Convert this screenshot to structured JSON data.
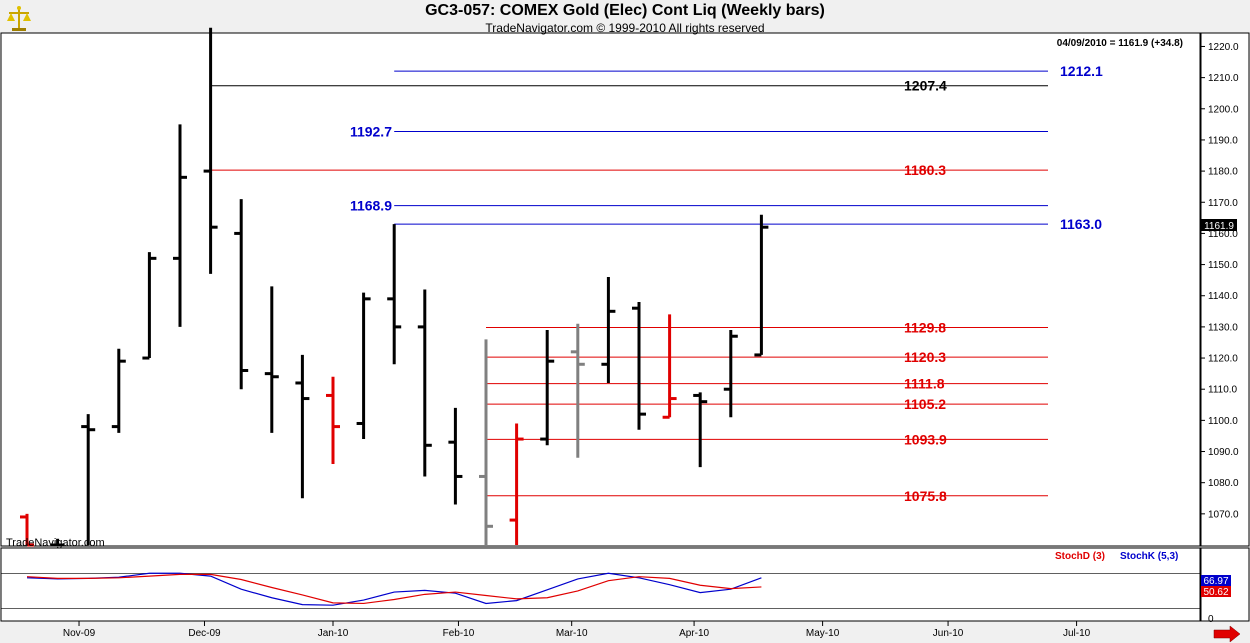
{
  "header": {
    "title": "GC3-057:  COMEX Gold (Elec) Cont Liq  (Weekly bars)",
    "subtitle": "TradeNavigator.com © 1999-2010 All rights reserved",
    "last_info": "04/09/2010 = 1161.9 (+34.8)",
    "watermark": "TradeNavigator.com",
    "last_price_tag": "1161.9"
  },
  "colors": {
    "black": "#000000",
    "red": "#e00000",
    "gray": "#808080",
    "blue": "#0000cc",
    "line_red": "#e00000"
  },
  "chart_data": [
    {
      "type": "ohlc",
      "title": "GC3-057:  COMEX Gold (Elec) Cont Liq  (Weekly bars)",
      "ylim": [
        1060,
        1224
      ],
      "yticks": [
        1070.0,
        1080.0,
        1090.0,
        1100.0,
        1110.0,
        1120.0,
        1130.0,
        1140.0,
        1150.0,
        1160.0,
        1170.0,
        1180.0,
        1190.0,
        1200.0,
        1210.0,
        1220.0
      ],
      "xticks": [
        {
          "label": "Nov-09",
          "bar": 1.7
        },
        {
          "label": "Dec-09",
          "bar": 5.8
        },
        {
          "label": "Jan-10",
          "bar": 10.0
        },
        {
          "label": "Feb-10",
          "bar": 14.1
        },
        {
          "label": "Mar-10",
          "bar": 17.8
        },
        {
          "label": "Apr-10",
          "bar": 21.8
        },
        {
          "label": "May-10",
          "bar": 26.0
        },
        {
          "label": "Jun-10",
          "bar": 30.1
        },
        {
          "label": "Jul-10",
          "bar": 34.3
        }
      ],
      "bars": [
        {
          "o": 1069,
          "h": 1070,
          "l": 1060,
          "c": 1060,
          "color": "red"
        },
        {
          "o": 1060,
          "h": 1062,
          "l": 1060,
          "c": 1060,
          "color": "black"
        },
        {
          "o": 1098,
          "h": 1102,
          "l": 1060,
          "c": 1097,
          "color": "black"
        },
        {
          "o": 1098,
          "h": 1123,
          "l": 1096,
          "c": 1119,
          "color": "black"
        },
        {
          "o": 1120,
          "h": 1154,
          "l": 1120,
          "c": 1152,
          "color": "black"
        },
        {
          "o": 1152,
          "h": 1195,
          "l": 1130,
          "c": 1178,
          "color": "black"
        },
        {
          "o": 1180,
          "h": 1226,
          "l": 1147,
          "c": 1162,
          "color": "black"
        },
        {
          "o": 1160,
          "h": 1171,
          "l": 1110,
          "c": 1116,
          "color": "black"
        },
        {
          "o": 1115,
          "h": 1143,
          "l": 1096,
          "c": 1114,
          "color": "black"
        },
        {
          "o": 1112,
          "h": 1121,
          "l": 1075,
          "c": 1107,
          "color": "black"
        },
        {
          "o": 1108,
          "h": 1114,
          "l": 1086,
          "c": 1098,
          "color": "red"
        },
        {
          "o": 1099,
          "h": 1141,
          "l": 1094,
          "c": 1139,
          "color": "black"
        },
        {
          "o": 1139,
          "h": 1163,
          "l": 1118,
          "c": 1130,
          "color": "black"
        },
        {
          "o": 1130,
          "h": 1142,
          "l": 1082,
          "c": 1092,
          "color": "black"
        },
        {
          "o": 1093,
          "h": 1104,
          "l": 1073,
          "c": 1082,
          "color": "black"
        },
        {
          "o": 1082,
          "h": 1126,
          "l": 1060,
          "c": 1066,
          "color": "gray"
        },
        {
          "o": 1068,
          "h": 1099,
          "l": 1060,
          "c": 1094,
          "color": "red"
        },
        {
          "o": 1094,
          "h": 1129,
          "l": 1092,
          "c": 1119,
          "color": "black"
        },
        {
          "o": 1122,
          "h": 1131,
          "l": 1088,
          "c": 1118,
          "color": "gray"
        },
        {
          "o": 1118,
          "h": 1146,
          "l": 1112,
          "c": 1135,
          "color": "black"
        },
        {
          "o": 1136,
          "h": 1138,
          "l": 1097,
          "c": 1102,
          "color": "black"
        },
        {
          "o": 1101,
          "h": 1134,
          "l": 1101,
          "c": 1107,
          "color": "red"
        },
        {
          "o": 1108,
          "h": 1109,
          "l": 1085,
          "c": 1106,
          "color": "black"
        },
        {
          "o": 1110,
          "h": 1129,
          "l": 1101,
          "c": 1127,
          "color": "black"
        },
        {
          "o": 1121,
          "h": 1166,
          "l": 1121,
          "c": 1162,
          "color": "black"
        }
      ],
      "levels": [
        {
          "value": 1212.1,
          "label": "1212.1",
          "color": "blue",
          "from_bar": 12.0,
          "label_side": "right"
        },
        {
          "value": 1207.4,
          "label": "1207.4",
          "color": "black",
          "from_bar": 6.0,
          "label_side": "right-mid"
        },
        {
          "value": 1192.7,
          "label": "1192.7",
          "color": "blue",
          "from_bar": 12.0,
          "label_side": "left"
        },
        {
          "value": 1180.3,
          "label": "1180.3",
          "color": "red",
          "from_bar": 6.0,
          "label_side": "right-mid"
        },
        {
          "value": 1168.9,
          "label": "1168.9",
          "color": "blue",
          "from_bar": 12.0,
          "label_side": "left"
        },
        {
          "value": 1163.0,
          "label": "1163.0",
          "color": "blue",
          "from_bar": 12.0,
          "label_side": "right"
        },
        {
          "value": 1129.8,
          "label": "1129.8",
          "color": "red",
          "from_bar": 15.0,
          "label_side": "right-mid"
        },
        {
          "value": 1120.3,
          "label": "1120.3",
          "color": "red",
          "from_bar": 15.0,
          "label_side": "right-mid"
        },
        {
          "value": 1111.8,
          "label": "1111.8",
          "color": "red",
          "from_bar": 15.0,
          "label_side": "right-mid"
        },
        {
          "value": 1105.2,
          "label": "1105.2",
          "color": "red",
          "from_bar": 15.0,
          "label_side": "right-mid"
        },
        {
          "value": 1093.9,
          "label": "1093.9",
          "color": "red",
          "from_bar": 15.0,
          "label_side": "right-mid"
        },
        {
          "value": 1075.8,
          "label": "1075.8",
          "color": "red",
          "from_bar": 15.0,
          "label_side": "right-mid"
        }
      ]
    },
    {
      "type": "line",
      "ylim": [
        0,
        100
      ],
      "yticks": [
        0
      ],
      "legend": [
        "StochD (3)",
        "StochK (5,3)"
      ],
      "value_tags": [
        "66.97",
        "50.62"
      ],
      "series": [
        {
          "name": "StochK (5,3)",
          "color": "blue",
          "values": [
            67,
            65,
            66,
            68,
            75,
            75,
            70,
            47,
            32,
            20,
            19,
            28,
            42,
            45,
            40,
            22,
            27,
            46,
            65,
            75,
            67,
            55,
            41,
            47,
            67
          ]
        },
        {
          "name": "StochD (3)",
          "color": "red",
          "values": [
            69,
            66,
            66,
            67,
            70,
            73,
            73,
            64,
            50,
            37,
            23,
            22,
            29,
            38,
            42,
            36,
            30,
            32,
            44,
            62,
            69,
            66,
            54,
            48,
            51
          ]
        }
      ]
    }
  ]
}
